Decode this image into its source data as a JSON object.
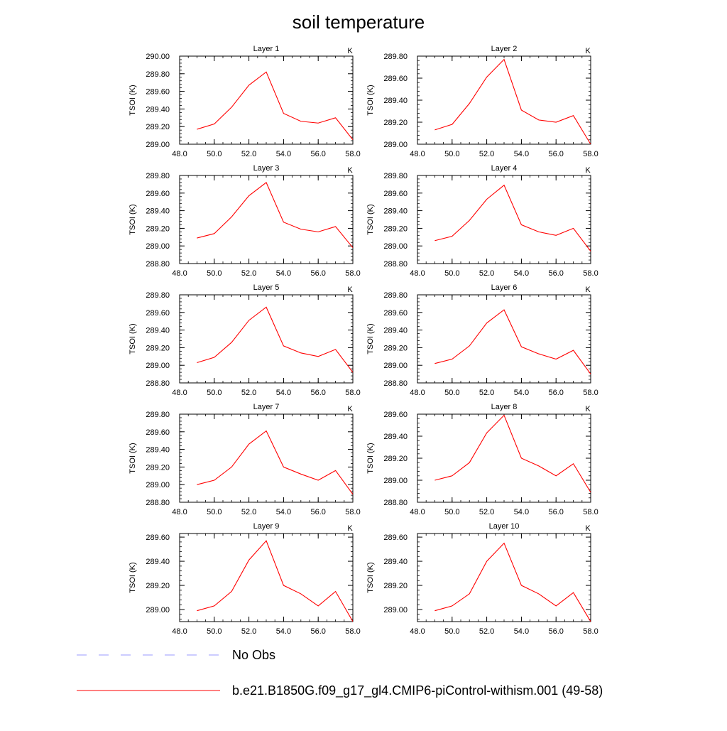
{
  "chart_data": {
    "type": "line",
    "title": "soil temperature",
    "x": [
      49,
      50,
      51,
      52,
      53,
      54,
      55,
      56,
      57,
      58
    ],
    "xlim": [
      48,
      58
    ],
    "x_ticks": [
      "48.0",
      "50.0",
      "52.0",
      "54.0",
      "56.0",
      "58.0"
    ],
    "ylabel": "TSOI  (K)",
    "units": "K",
    "grid": false,
    "series_colors": {
      "model": "#ff0000",
      "obs": "#9999ff"
    },
    "panels": [
      {
        "title": "Layer 1",
        "ylim": [
          289.0,
          290.0
        ],
        "y_ticks": [
          "289.00",
          "289.20",
          "289.40",
          "289.60",
          "289.80",
          "290.00"
        ],
        "values": [
          289.17,
          289.23,
          289.42,
          289.67,
          289.82,
          289.35,
          289.26,
          289.24,
          289.3,
          289.05
        ]
      },
      {
        "title": "Layer 2",
        "ylim": [
          289.0,
          289.8
        ],
        "y_ticks": [
          "289.00",
          "289.20",
          "289.40",
          "289.60",
          "289.80"
        ],
        "values": [
          289.13,
          289.18,
          289.37,
          289.61,
          289.77,
          289.31,
          289.22,
          289.2,
          289.26,
          289.0
        ]
      },
      {
        "title": "Layer 3",
        "ylim": [
          288.8,
          289.8
        ],
        "y_ticks": [
          "288.80",
          "289.00",
          "289.20",
          "289.40",
          "289.60",
          "289.80"
        ],
        "values": [
          289.09,
          289.14,
          289.33,
          289.57,
          289.72,
          289.27,
          289.19,
          289.16,
          289.22,
          288.98
        ]
      },
      {
        "title": "Layer 4",
        "ylim": [
          288.8,
          289.8
        ],
        "y_ticks": [
          "288.80",
          "289.00",
          "289.20",
          "289.40",
          "289.60",
          "289.80"
        ],
        "values": [
          289.06,
          289.11,
          289.29,
          289.53,
          289.69,
          289.24,
          289.16,
          289.12,
          289.2,
          288.94
        ]
      },
      {
        "title": "Layer 5",
        "ylim": [
          288.8,
          289.8
        ],
        "y_ticks": [
          "288.80",
          "289.00",
          "289.20",
          "289.40",
          "289.60",
          "289.80"
        ],
        "values": [
          289.03,
          289.09,
          289.26,
          289.51,
          289.66,
          289.22,
          289.14,
          289.1,
          289.18,
          288.92
        ]
      },
      {
        "title": "Layer 6",
        "ylim": [
          288.8,
          289.8
        ],
        "y_ticks": [
          "288.80",
          "289.00",
          "289.20",
          "289.40",
          "289.60",
          "289.80"
        ],
        "values": [
          289.02,
          289.07,
          289.22,
          289.48,
          289.63,
          289.21,
          289.13,
          289.07,
          289.17,
          288.9
        ]
      },
      {
        "title": "Layer 7",
        "ylim": [
          288.8,
          289.8
        ],
        "y_ticks": [
          "288.80",
          "289.00",
          "289.20",
          "289.40",
          "289.60",
          "289.80"
        ],
        "values": [
          289.0,
          289.05,
          289.2,
          289.46,
          289.61,
          289.2,
          289.12,
          289.05,
          289.16,
          288.89
        ]
      },
      {
        "title": "Layer 8",
        "ylim": [
          288.8,
          289.6
        ],
        "y_ticks": [
          "288.80",
          "289.00",
          "289.20",
          "289.40",
          "289.60"
        ],
        "values": [
          289.0,
          289.04,
          289.16,
          289.43,
          289.59,
          289.2,
          289.13,
          289.04,
          289.15,
          288.89
        ]
      },
      {
        "title": "Layer 9",
        "ylim": [
          288.9,
          289.63
        ],
        "y_ticks": [
          "289.00",
          "289.20",
          "289.40",
          "289.60"
        ],
        "values": [
          288.99,
          289.03,
          289.15,
          289.41,
          289.57,
          289.2,
          289.13,
          289.03,
          289.15,
          288.9
        ]
      },
      {
        "title": "Layer 10",
        "ylim": [
          288.9,
          289.63
        ],
        "y_ticks": [
          "289.00",
          "289.20",
          "289.40",
          "289.60"
        ],
        "values": [
          288.99,
          289.03,
          289.13,
          289.4,
          289.55,
          289.2,
          289.13,
          289.03,
          289.14,
          288.9
        ]
      }
    ],
    "legend": [
      {
        "label": "No Obs",
        "style": "dashed",
        "color": "#9999ff"
      },
      {
        "label": "b.e21.B1850G.f09_g17_gl4.CMIP6-piControl-withism.001 (49-58)",
        "style": "solid",
        "color": "#ff0000"
      }
    ]
  }
}
